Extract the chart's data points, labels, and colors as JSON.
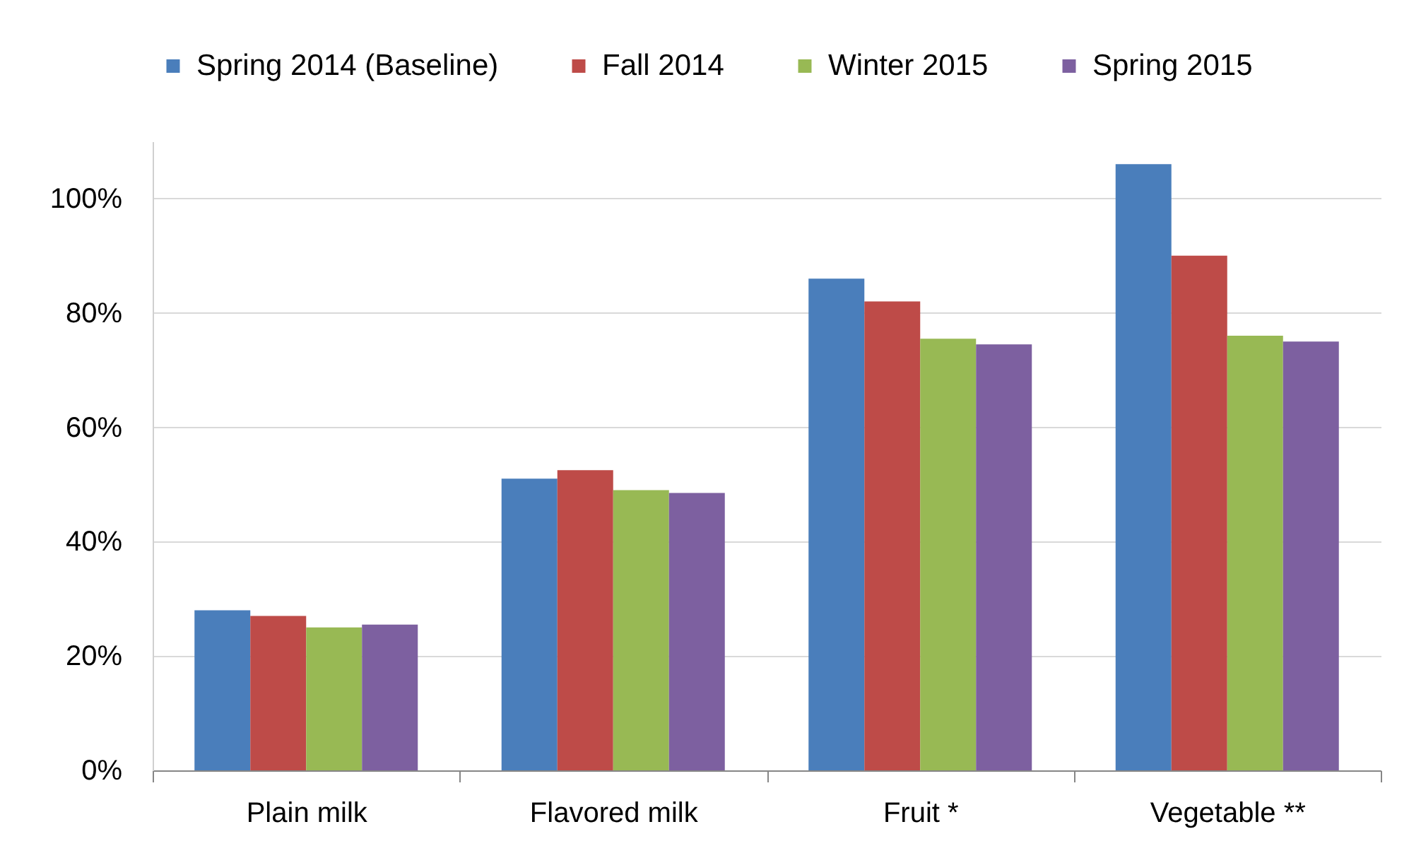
{
  "chart_data": {
    "type": "bar",
    "categories": [
      "Plain milk",
      "Flavored milk",
      "Fruit *",
      "Vegetable **"
    ],
    "series": [
      {
        "name": "Spring 2014 (Baseline)",
        "color": "#4a7ebb",
        "values": [
          28,
          51,
          86,
          106
        ]
      },
      {
        "name": "Fall 2014",
        "color": "#be4b48",
        "values": [
          27,
          52.5,
          82,
          90
        ]
      },
      {
        "name": "Winter 2015",
        "color": "#98b954",
        "values": [
          25,
          49,
          75.5,
          76
        ]
      },
      {
        "name": "Spring 2015",
        "color": "#7d60a0",
        "values": [
          25.5,
          48.5,
          74.5,
          75
        ]
      }
    ],
    "ylim": [
      0,
      110
    ],
    "yticks": [
      {
        "value": 0,
        "label": "0%"
      },
      {
        "value": 20,
        "label": "20%"
      },
      {
        "value": 40,
        "label": "40%"
      },
      {
        "value": 60,
        "label": "60%"
      },
      {
        "value": 80,
        "label": "80%"
      },
      {
        "value": 100,
        "label": "100%"
      }
    ],
    "grid": "y",
    "legend": "top"
  }
}
